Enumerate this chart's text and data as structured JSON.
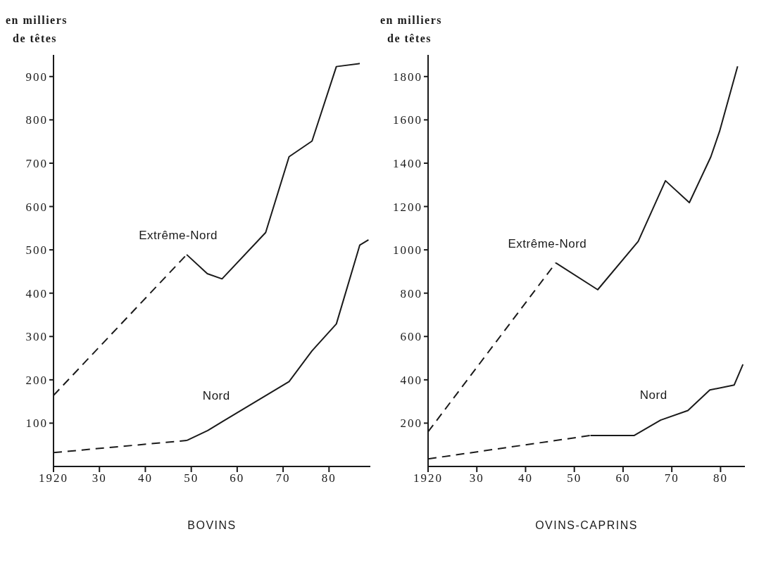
{
  "chart_data": [
    {
      "type": "line",
      "title": "BOVINS",
      "ylabel": "en milliers de têtes",
      "xlim": [
        1920,
        1989
      ],
      "ylim": [
        0,
        950
      ],
      "xticks": [
        1920,
        {
          "value": 1930,
          "label": "30"
        },
        {
          "value": 1940,
          "label": "40"
        },
        {
          "value": 1950,
          "label": "50"
        },
        {
          "value": 1960,
          "label": "60"
        },
        {
          "value": 1970,
          "label": "70"
        },
        {
          "value": 1980,
          "label": "80"
        }
      ],
      "yticks": [
        100,
        200,
        300,
        400,
        500,
        600,
        700,
        800,
        900
      ],
      "grid": false,
      "legend": false,
      "marker": "none",
      "series": [
        {
          "color": "#1a1a1a",
          "line_style": "dashed",
          "x": [
            1920,
            1949
          ],
          "values": [
            164,
            489
          ]
        },
        {
          "name": "Extrême-Nord",
          "color": "#1a1a1a",
          "line_style": "solid",
          "x": [
            1949,
            1953.5,
            1956.7,
            1966.2,
            1971.3,
            1976.3,
            1981.6,
            1986.7
          ],
          "values": [
            489,
            445,
            433,
            540,
            715,
            751,
            923,
            930
          ]
        },
        {
          "color": "#1a1a1a",
          "line_style": "dashed",
          "x": [
            1920,
            1949
          ],
          "values": [
            32,
            60
          ]
        },
        {
          "name": "Nord",
          "color": "#1a1a1a",
          "line_style": "solid",
          "x": [
            1949,
            1953.6,
            1957,
            1971.3,
            1976.3,
            1981.6,
            1986.7,
            1988.6
          ],
          "values": [
            60,
            83,
            105,
            196,
            267,
            329,
            511,
            523
          ]
        }
      ]
    },
    {
      "type": "line",
      "title": "OVINS-CAPRINS",
      "ylabel": "en milliers de têtes",
      "xlim": [
        1920,
        1985
      ],
      "ylim": [
        0,
        1900
      ],
      "xticks": [
        1920,
        {
          "value": 1930,
          "label": "30"
        },
        {
          "value": 1940,
          "label": "40"
        },
        {
          "value": 1950,
          "label": "50"
        },
        {
          "value": 1960,
          "label": "60"
        },
        {
          "value": 1970,
          "label": "70"
        },
        {
          "value": 1980,
          "label": "80"
        }
      ],
      "yticks": [
        200,
        400,
        600,
        800,
        1000,
        1200,
        1400,
        1600,
        1800
      ],
      "grid": false,
      "legend": false,
      "marker": "none",
      "series": [
        {
          "color": "#1a1a1a",
          "line_style": "dashed",
          "x": [
            1920,
            1946.2
          ],
          "values": [
            160,
            940
          ]
        },
        {
          "name": "Extrême-Nord",
          "color": "#1a1a1a",
          "line_style": "solid",
          "x": [
            1946.2,
            1954.8,
            1963.1,
            1968.7,
            1973.6,
            1978,
            1979.8,
            1983.5
          ],
          "values": [
            940,
            816,
            1039,
            1319,
            1218,
            1429,
            1547,
            1847
          ]
        },
        {
          "color": "#1a1a1a",
          "line_style": "dashed",
          "x": [
            1920,
            1953.3
          ],
          "values": [
            35,
            143
          ]
        },
        {
          "name": "Nord",
          "color": "#1a1a1a",
          "line_style": "solid",
          "x": [
            1953.3,
            1962.3,
            1967.7,
            1973.3,
            1977.8,
            1982.8,
            1984.6
          ],
          "values": [
            143,
            143,
            214,
            258,
            353,
            376,
            471
          ]
        }
      ]
    }
  ]
}
